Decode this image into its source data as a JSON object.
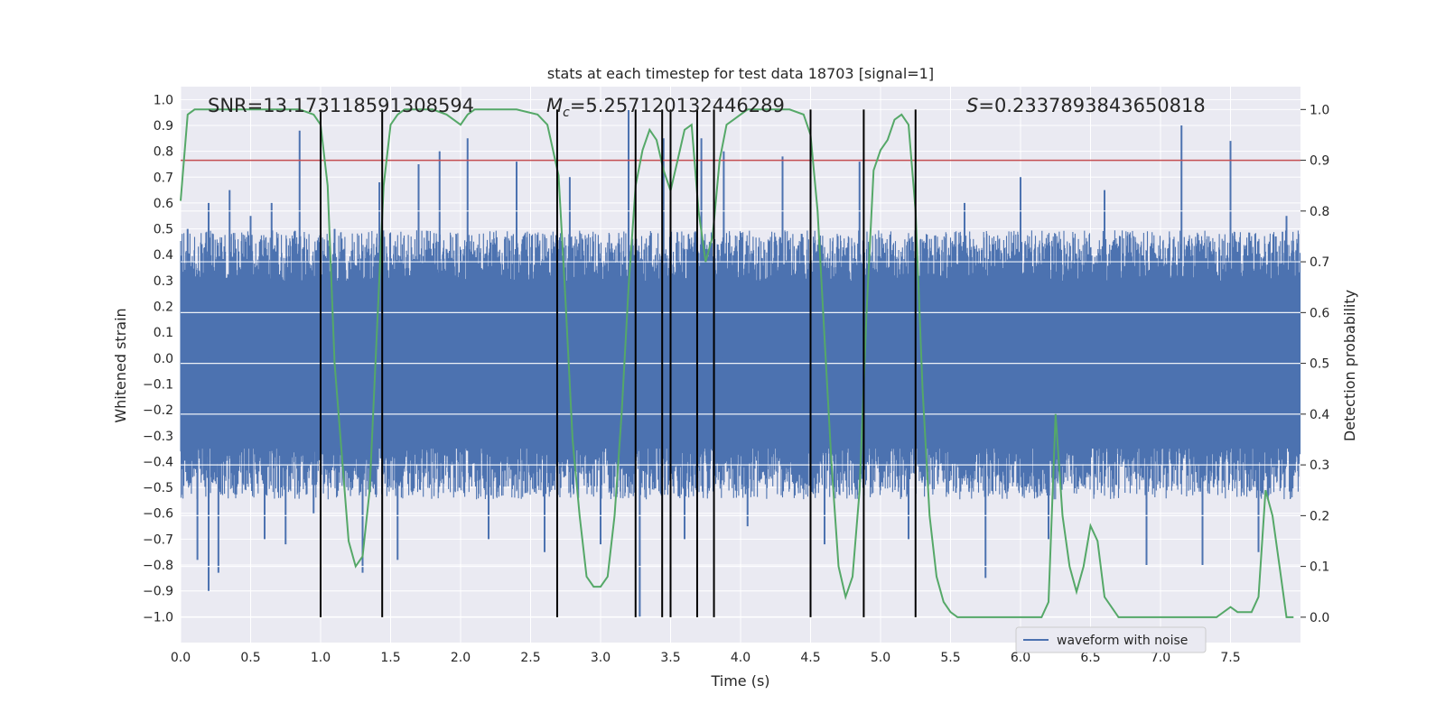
{
  "chart_data": {
    "type": "line",
    "title": "stats at each timestep for test data 18703 [signal=1]",
    "xlabel": "Time (s)",
    "ylabel": "Whitened strain",
    "y2label": "Detection probability",
    "xlim": [
      0.0,
      8.0
    ],
    "ylim": [
      -1.1,
      1.05
    ],
    "y2lim": [
      -0.05,
      1.045
    ],
    "xticks": [
      0.0,
      0.5,
      1.0,
      1.5,
      2.0,
      2.5,
      3.0,
      3.5,
      4.0,
      4.5,
      5.0,
      5.5,
      6.0,
      6.5,
      7.0,
      7.5
    ],
    "yticks": [
      1.0,
      0.9,
      0.8,
      0.7,
      0.6,
      0.5,
      0.4,
      0.3,
      0.2,
      0.1,
      0.0,
      -0.1,
      -0.2,
      -0.3,
      -0.4,
      -0.5,
      -0.6,
      -0.7,
      -0.8,
      -0.9,
      -1.0
    ],
    "y2ticks": [
      1.0,
      0.9,
      0.8,
      0.7,
      0.6,
      0.5,
      0.4,
      0.3,
      0.2,
      0.1,
      0.0
    ],
    "grid": true,
    "legend": {
      "label": "waveform with noise",
      "position": "lower-right"
    },
    "annotations": {
      "snr": "SNR=13.173118591308594",
      "mc_symbol": "M",
      "mc_sub": "c",
      "mc_value": "=5.257120132446289",
      "s_symbol": "S",
      "s_value": "=0.2337893843650818"
    },
    "colors": {
      "waveform": "#4c72b0",
      "probability": "#55a868",
      "threshold": "#c44e52",
      "markers": "#000000",
      "background": "#eaeaf2",
      "grid": "#ffffff"
    },
    "waveform_envelope": {
      "typical_upper": 0.38,
      "typical_lower": -0.42,
      "spikes": [
        {
          "t": 0.05,
          "v": 0.5
        },
        {
          "t": 0.12,
          "v": -0.78
        },
        {
          "t": 0.2,
          "v": 0.6
        },
        {
          "t": 0.2,
          "v": -0.9
        },
        {
          "t": 0.27,
          "v": -0.83
        },
        {
          "t": 0.35,
          "v": 0.65
        },
        {
          "t": 0.5,
          "v": 0.55
        },
        {
          "t": 0.6,
          "v": -0.7
        },
        {
          "t": 0.65,
          "v": 0.6
        },
        {
          "t": 0.75,
          "v": -0.72
        },
        {
          "t": 0.85,
          "v": 0.88
        },
        {
          "t": 0.95,
          "v": -0.6
        },
        {
          "t": 1.1,
          "v": 0.5
        },
        {
          "t": 1.3,
          "v": -0.83
        },
        {
          "t": 1.42,
          "v": 0.68
        },
        {
          "t": 1.55,
          "v": -0.78
        },
        {
          "t": 1.7,
          "v": 0.75
        },
        {
          "t": 1.85,
          "v": 0.8
        },
        {
          "t": 2.05,
          "v": 0.85
        },
        {
          "t": 2.2,
          "v": -0.7
        },
        {
          "t": 2.4,
          "v": 0.76
        },
        {
          "t": 2.6,
          "v": -0.75
        },
        {
          "t": 2.78,
          "v": 0.7
        },
        {
          "t": 3.0,
          "v": -0.72
        },
        {
          "t": 3.2,
          "v": 0.96
        },
        {
          "t": 3.28,
          "v": -1.0
        },
        {
          "t": 3.45,
          "v": 0.85
        },
        {
          "t": 3.6,
          "v": -0.7
        },
        {
          "t": 3.72,
          "v": 0.85
        },
        {
          "t": 3.88,
          "v": 0.8
        },
        {
          "t": 4.05,
          "v": -0.65
        },
        {
          "t": 4.3,
          "v": 0.78
        },
        {
          "t": 4.6,
          "v": -0.72
        },
        {
          "t": 4.85,
          "v": 0.76
        },
        {
          "t": 5.2,
          "v": -0.7
        },
        {
          "t": 5.6,
          "v": 0.6
        },
        {
          "t": 5.75,
          "v": -0.85
        },
        {
          "t": 6.0,
          "v": 0.7
        },
        {
          "t": 6.2,
          "v": -0.7
        },
        {
          "t": 6.6,
          "v": 0.65
        },
        {
          "t": 6.9,
          "v": -0.8
        },
        {
          "t": 7.15,
          "v": 0.9
        },
        {
          "t": 7.3,
          "v": -0.8
        },
        {
          "t": 7.5,
          "v": 0.84
        },
        {
          "t": 7.7,
          "v": -0.75
        },
        {
          "t": 7.9,
          "v": 0.55
        }
      ]
    },
    "detection_probability": {
      "x": [
        0.0,
        0.05,
        0.1,
        0.2,
        0.3,
        0.5,
        0.7,
        0.85,
        0.95,
        1.0,
        1.05,
        1.1,
        1.2,
        1.25,
        1.3,
        1.35,
        1.4,
        1.45,
        1.5,
        1.55,
        1.6,
        1.7,
        1.8,
        1.9,
        2.0,
        2.05,
        2.1,
        2.2,
        2.4,
        2.55,
        2.62,
        2.7,
        2.75,
        2.8,
        2.85,
        2.9,
        2.95,
        3.0,
        3.05,
        3.1,
        3.15,
        3.2,
        3.25,
        3.3,
        3.35,
        3.4,
        3.45,
        3.5,
        3.55,
        3.6,
        3.65,
        3.7,
        3.75,
        3.8,
        3.85,
        3.9,
        3.95,
        4.0,
        4.05,
        4.1,
        4.2,
        4.35,
        4.45,
        4.5,
        4.55,
        4.6,
        4.65,
        4.7,
        4.75,
        4.8,
        4.85,
        4.9,
        4.95,
        5.0,
        5.05,
        5.1,
        5.15,
        5.2,
        5.25,
        5.3,
        5.35,
        5.4,
        5.45,
        5.5,
        5.55,
        5.6,
        5.7,
        5.8,
        5.9,
        6.0,
        6.05,
        6.1,
        6.15,
        6.2,
        6.25,
        6.3,
        6.35,
        6.4,
        6.45,
        6.5,
        6.55,
        6.6,
        6.7,
        6.8,
        6.9,
        7.0,
        7.1,
        7.2,
        7.3,
        7.35,
        7.4,
        7.5,
        7.55,
        7.6,
        7.65,
        7.7,
        7.75,
        7.8,
        7.85,
        7.9,
        7.95
      ],
      "y": [
        0.82,
        0.99,
        1.0,
        1.0,
        1.0,
        1.0,
        1.0,
        1.0,
        0.99,
        0.97,
        0.85,
        0.5,
        0.15,
        0.1,
        0.12,
        0.25,
        0.55,
        0.85,
        0.97,
        0.99,
        1.0,
        1.0,
        1.0,
        0.99,
        0.97,
        0.99,
        1.0,
        1.0,
        1.0,
        0.99,
        0.97,
        0.87,
        0.62,
        0.35,
        0.2,
        0.08,
        0.06,
        0.06,
        0.08,
        0.2,
        0.4,
        0.65,
        0.85,
        0.92,
        0.96,
        0.94,
        0.88,
        0.84,
        0.9,
        0.96,
        0.97,
        0.8,
        0.7,
        0.75,
        0.9,
        0.97,
        0.98,
        0.99,
        1.0,
        1.0,
        1.0,
        1.0,
        0.99,
        0.95,
        0.8,
        0.55,
        0.3,
        0.1,
        0.04,
        0.08,
        0.25,
        0.6,
        0.88,
        0.92,
        0.94,
        0.98,
        0.99,
        0.97,
        0.8,
        0.45,
        0.2,
        0.08,
        0.03,
        0.01,
        0.0,
        0.0,
        0.0,
        0.0,
        0.0,
        0.0,
        0.0,
        0.0,
        0.0,
        0.03,
        0.4,
        0.2,
        0.1,
        0.05,
        0.1,
        0.18,
        0.15,
        0.04,
        0.0,
        0.0,
        0.0,
        0.0,
        0.0,
        0.0,
        0.0,
        0.0,
        0.0,
        0.02,
        0.01,
        0.01,
        0.01,
        0.04,
        0.25,
        0.2,
        0.1,
        0.0,
        0.0
      ]
    },
    "threshold_y2": 0.9,
    "vertical_markers_x": [
      1.0,
      1.44,
      2.69,
      3.25,
      3.44,
      3.5,
      3.69,
      3.81,
      4.5,
      4.88,
      5.25
    ]
  }
}
